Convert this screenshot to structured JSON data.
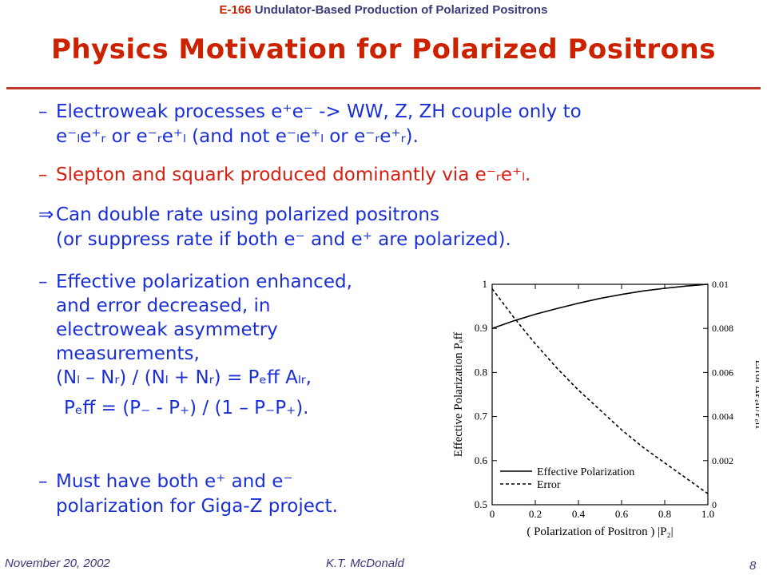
{
  "header": {
    "code": "E-166",
    "rest": " Undulator-Based Production of Polarized Positrons"
  },
  "title": "Physics Motivation for Polarized Positrons",
  "bullets": {
    "b1_dash": "–",
    "b1_l1": "Electroweak processes e⁺e⁻ -> WW, Z, ZH couple only to",
    "b1_l2": "e⁻ₗe⁺ᵣ or e⁻ᵣe⁺ₗ (and not e⁻ₗe⁺ₗ or e⁻ᵣe⁺ᵣ).",
    "b2_dash": "–",
    "b2": "Slepton and squark produced dominantly via e⁻ᵣe⁺ₗ.",
    "b3_arrow": "⇒",
    "b3_l1": "Can double rate using polarized positrons",
    "b3_l2": "(or suppress rate if both e⁻ and e⁺ are polarized).",
    "b4_dash": "–",
    "b4_l1": "Effective polarization enhanced,",
    "b4_l2": "and error decreased, in",
    "b4_l3": "electroweak asymmetry",
    "b4_l4": "measurements,",
    "b4_l5": "(Nₗ – Nᵣ) / (Nₗ + Nᵣ) = Pₑff Aₗᵣ,",
    "b4_l6": "Pₑff = (P₋ - P₊) / (1 – P₋P₊).",
    "b5_dash": "–",
    "b5_l1": "Must have both e⁺ and e⁻",
    "b5_l2": "polarization for Giga-Z project."
  },
  "footer": {
    "date": "November 20, 2002",
    "author": "K.T. McDonald",
    "page": "8"
  },
  "chart_data": {
    "type": "line",
    "xlabel": "( Polarization of Positron ) |P₂|",
    "ylabel": "Effective Polarization Pₑff",
    "y2label": "Error ΔPₑff/Pₑff",
    "xlim": [
      0,
      1.0
    ],
    "ylim": [
      0.5,
      1.0
    ],
    "y2lim": [
      0,
      0.01
    ],
    "xticks": [
      "0",
      "0.2",
      "0.4",
      "0.6",
      "0.8",
      "1.0"
    ],
    "yticks": [
      "0.5",
      "0.6",
      "0.7",
      "0.8",
      "0.9",
      "1"
    ],
    "y2ticks": [
      "0",
      "0.002",
      "0.004",
      "0.006",
      "0.008",
      "0.01"
    ],
    "legend_position": "bottom-left",
    "series": [
      {
        "name": "Effective Polarization",
        "axis": "left",
        "style": "solid",
        "x": [
          0,
          0.1,
          0.2,
          0.3,
          0.4,
          0.5,
          0.6,
          0.7,
          0.8,
          0.9,
          1.0
        ],
        "values": [
          0.9,
          0.917,
          0.932,
          0.945,
          0.957,
          0.968,
          0.977,
          0.985,
          0.991,
          0.996,
          1.0
        ]
      },
      {
        "name": "Error",
        "axis": "right",
        "style": "dashed",
        "x": [
          0,
          0.1,
          0.2,
          0.3,
          0.4,
          0.5,
          0.6,
          0.7,
          0.8,
          0.9,
          1.0
        ],
        "values": [
          0.0098,
          0.0085,
          0.0073,
          0.0062,
          0.0052,
          0.0043,
          0.0034,
          0.0026,
          0.0019,
          0.0012,
          0.0005
        ]
      }
    ]
  }
}
